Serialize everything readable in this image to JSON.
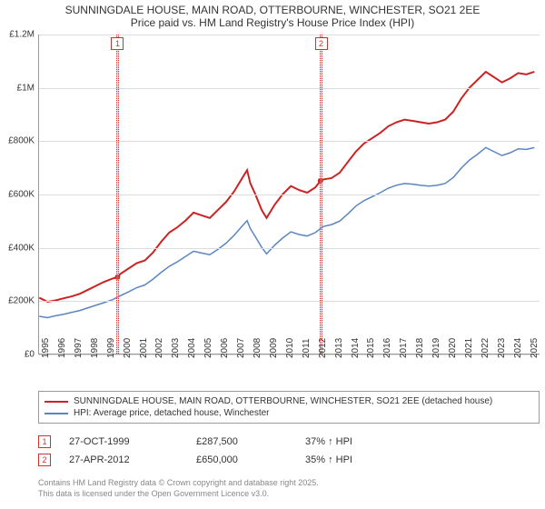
{
  "title_line1": "SUNNINGDALE HOUSE, MAIN ROAD, OTTERBOURNE, WINCHESTER, SO21 2EE",
  "title_line2": "Price paid vs. HM Land Registry's House Price Index (HPI)",
  "chart": {
    "type": "line",
    "background_color": "#ffffff",
    "grid_color": "#dddddd",
    "axis_color": "#999999",
    "x_years": [
      "1995",
      "1996",
      "1997",
      "1998",
      "1999",
      "2000",
      "2001",
      "2002",
      "2003",
      "2004",
      "2005",
      "2006",
      "2007",
      "2008",
      "2009",
      "2010",
      "2011",
      "2012",
      "2013",
      "2014",
      "2015",
      "2016",
      "2017",
      "2018",
      "2019",
      "2020",
      "2021",
      "2022",
      "2023",
      "2024",
      "2025"
    ],
    "xlim": [
      1995,
      2025.8
    ],
    "ylim": [
      0,
      1200000
    ],
    "ytick_step": 200000,
    "ytick_labels": [
      "£0",
      "£200K",
      "£400K",
      "£600K",
      "£800K",
      "£1M",
      "£1.2M"
    ],
    "xlabel_fontsize": 10,
    "ylabel_fontsize": 10,
    "title_fontsize": 12,
    "series": [
      {
        "name": "property",
        "label": "SUNNINGDALE HOUSE, MAIN ROAD, OTTERBOURNE, WINCHESTER, SO21 2EE (detached house)",
        "color": "#cc2222",
        "line_width": 2,
        "values": [
          [
            1995.0,
            210000
          ],
          [
            1995.5,
            195000
          ],
          [
            1996.0,
            200000
          ],
          [
            1996.5,
            208000
          ],
          [
            1997.0,
            215000
          ],
          [
            1997.5,
            225000
          ],
          [
            1998.0,
            240000
          ],
          [
            1998.5,
            255000
          ],
          [
            1999.0,
            270000
          ],
          [
            1999.5,
            282000
          ],
          [
            1999.82,
            287500
          ],
          [
            2000.0,
            300000
          ],
          [
            2000.5,
            320000
          ],
          [
            2001.0,
            340000
          ],
          [
            2001.5,
            350000
          ],
          [
            2002.0,
            380000
          ],
          [
            2002.5,
            420000
          ],
          [
            2003.0,
            455000
          ],
          [
            2003.5,
            475000
          ],
          [
            2004.0,
            500000
          ],
          [
            2004.5,
            530000
          ],
          [
            2005.0,
            520000
          ],
          [
            2005.5,
            510000
          ],
          [
            2006.0,
            540000
          ],
          [
            2006.5,
            570000
          ],
          [
            2007.0,
            610000
          ],
          [
            2007.5,
            660000
          ],
          [
            2007.8,
            690000
          ],
          [
            2008.0,
            640000
          ],
          [
            2008.3,
            600000
          ],
          [
            2008.7,
            540000
          ],
          [
            2009.0,
            510000
          ],
          [
            2009.5,
            560000
          ],
          [
            2010.0,
            600000
          ],
          [
            2010.5,
            630000
          ],
          [
            2011.0,
            615000
          ],
          [
            2011.5,
            605000
          ],
          [
            2012.0,
            625000
          ],
          [
            2012.32,
            650000
          ],
          [
            2012.5,
            655000
          ],
          [
            2013.0,
            660000
          ],
          [
            2013.5,
            680000
          ],
          [
            2014.0,
            720000
          ],
          [
            2014.5,
            760000
          ],
          [
            2015.0,
            790000
          ],
          [
            2015.5,
            810000
          ],
          [
            2016.0,
            830000
          ],
          [
            2016.5,
            855000
          ],
          [
            2017.0,
            870000
          ],
          [
            2017.5,
            880000
          ],
          [
            2018.0,
            875000
          ],
          [
            2018.5,
            870000
          ],
          [
            2019.0,
            865000
          ],
          [
            2019.5,
            870000
          ],
          [
            2020.0,
            880000
          ],
          [
            2020.5,
            910000
          ],
          [
            2021.0,
            960000
          ],
          [
            2021.5,
            1000000
          ],
          [
            2022.0,
            1030000
          ],
          [
            2022.5,
            1060000
          ],
          [
            2023.0,
            1040000
          ],
          [
            2023.5,
            1020000
          ],
          [
            2024.0,
            1035000
          ],
          [
            2024.5,
            1055000
          ],
          [
            2025.0,
            1050000
          ],
          [
            2025.5,
            1060000
          ]
        ],
        "markers": [
          {
            "x": 1999.82,
            "y": 287500
          },
          {
            "x": 2012.32,
            "y": 650000
          }
        ]
      },
      {
        "name": "hpi",
        "label": "HPI: Average price, detached house, Winchester",
        "color": "#5b85c2",
        "line_width": 1.5,
        "values": [
          [
            1995.0,
            140000
          ],
          [
            1995.5,
            135000
          ],
          [
            1996.0,
            142000
          ],
          [
            1996.5,
            148000
          ],
          [
            1997.0,
            155000
          ],
          [
            1997.5,
            162000
          ],
          [
            1998.0,
            172000
          ],
          [
            1998.5,
            182000
          ],
          [
            1999.0,
            192000
          ],
          [
            1999.5,
            202000
          ],
          [
            2000.0,
            218000
          ],
          [
            2000.5,
            232000
          ],
          [
            2001.0,
            248000
          ],
          [
            2001.5,
            258000
          ],
          [
            2002.0,
            280000
          ],
          [
            2002.5,
            305000
          ],
          [
            2003.0,
            328000
          ],
          [
            2003.5,
            345000
          ],
          [
            2004.0,
            365000
          ],
          [
            2004.5,
            385000
          ],
          [
            2005.0,
            378000
          ],
          [
            2005.5,
            372000
          ],
          [
            2006.0,
            392000
          ],
          [
            2006.5,
            415000
          ],
          [
            2007.0,
            445000
          ],
          [
            2007.5,
            480000
          ],
          [
            2007.8,
            500000
          ],
          [
            2008.0,
            470000
          ],
          [
            2008.3,
            440000
          ],
          [
            2008.7,
            400000
          ],
          [
            2009.0,
            375000
          ],
          [
            2009.5,
            408000
          ],
          [
            2010.0,
            435000
          ],
          [
            2010.5,
            458000
          ],
          [
            2011.0,
            448000
          ],
          [
            2011.5,
            442000
          ],
          [
            2012.0,
            455000
          ],
          [
            2012.5,
            478000
          ],
          [
            2013.0,
            485000
          ],
          [
            2013.5,
            498000
          ],
          [
            2014.0,
            525000
          ],
          [
            2014.5,
            555000
          ],
          [
            2015.0,
            575000
          ],
          [
            2015.5,
            590000
          ],
          [
            2016.0,
            605000
          ],
          [
            2016.5,
            622000
          ],
          [
            2017.0,
            633000
          ],
          [
            2017.5,
            640000
          ],
          [
            2018.0,
            637000
          ],
          [
            2018.5,
            633000
          ],
          [
            2019.0,
            630000
          ],
          [
            2019.5,
            633000
          ],
          [
            2020.0,
            640000
          ],
          [
            2020.5,
            662000
          ],
          [
            2021.0,
            698000
          ],
          [
            2021.5,
            728000
          ],
          [
            2022.0,
            750000
          ],
          [
            2022.5,
            775000
          ],
          [
            2023.0,
            760000
          ],
          [
            2023.5,
            745000
          ],
          [
            2024.0,
            755000
          ],
          [
            2024.5,
            770000
          ],
          [
            2025.0,
            768000
          ],
          [
            2025.5,
            775000
          ]
        ]
      }
    ],
    "event_bands": [
      {
        "idx": "1",
        "x_start": 1999.75,
        "x_end": 1999.9,
        "color": "rgba(173,199,232,0.35)",
        "border": "#cc2222"
      },
      {
        "idx": "2",
        "x_start": 2012.25,
        "x_end": 2012.4,
        "color": "rgba(173,199,232,0.35)",
        "border": "#cc2222"
      }
    ]
  },
  "legend": {
    "items": [
      {
        "color": "#cc2222",
        "label": "SUNNINGDALE HOUSE, MAIN ROAD, OTTERBOURNE, WINCHESTER, SO21 2EE (detached house)"
      },
      {
        "color": "#5b85c2",
        "label": "HPI: Average price, detached house, Winchester"
      }
    ]
  },
  "annotations": [
    {
      "idx": "1",
      "date": "27-OCT-1999",
      "price": "£287,500",
      "delta": "37% ↑ HPI"
    },
    {
      "idx": "2",
      "date": "27-APR-2012",
      "price": "£650,000",
      "delta": "35% ↑ HPI"
    }
  ],
  "footer_line1": "Contains HM Land Registry data © Crown copyright and database right 2025.",
  "footer_line2": "This data is licensed under the Open Government Licence v3.0."
}
